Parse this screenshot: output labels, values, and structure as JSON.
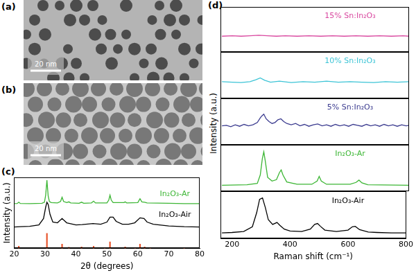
{
  "images": [
    {
      "label": "(a)",
      "scale_bar": "20 nm"
    },
    {
      "label": "(b)",
      "scale_bar": "20 nm"
    }
  ],
  "chart_data": [
    {
      "type": "line",
      "label": "(c)",
      "xlabel": "2θ (degrees)",
      "ylabel": "Intensity (a.u.)",
      "xlim": [
        20,
        80
      ],
      "xticks": [
        20,
        30,
        40,
        50,
        60,
        70,
        80
      ],
      "ylim": [
        0,
        10
      ],
      "tick_labels": "x",
      "grid": false,
      "series": [
        {
          "color": "#3cb634",
          "x": [
            20,
            21,
            21.5,
            22,
            25,
            29,
            29.8,
            30.2,
            30.6,
            31.0,
            31.4,
            32,
            34,
            35,
            35.5,
            36,
            37,
            37.7,
            38.3,
            41,
            41.8,
            42.5,
            45,
            45.7,
            46.3,
            50,
            50.6,
            51.0,
            51.4,
            52,
            55.5,
            55.9,
            56.4,
            60,
            60.7,
            61.3,
            62.2,
            63,
            70,
            75,
            80
          ],
          "values": [
            6.3,
            6.32,
            6.5,
            6.32,
            6.3,
            6.35,
            6.5,
            7.5,
            9.6,
            7.4,
            6.6,
            6.45,
            6.4,
            6.6,
            7.2,
            6.6,
            6.45,
            6.55,
            6.4,
            6.35,
            6.5,
            6.35,
            6.4,
            6.65,
            6.4,
            6.4,
            6.8,
            7.5,
            6.8,
            6.45,
            6.45,
            6.55,
            6.4,
            6.45,
            7.0,
            6.55,
            6.5,
            6.4,
            6.35,
            6.3,
            6.3
          ]
        },
        {
          "color": "#000000",
          "x": [
            20,
            22,
            25,
            28,
            29.5,
            30.2,
            30.6,
            31.0,
            31.6,
            32.5,
            34,
            35.5,
            37,
            38,
            40,
            42,
            45.5,
            48,
            50,
            51,
            52,
            53,
            55,
            57,
            59,
            60.7,
            62,
            63,
            65,
            70,
            75,
            80
          ],
          "values": [
            3.0,
            3.05,
            3.1,
            3.3,
            4.2,
            5.8,
            6.5,
            6.2,
            4.8,
            3.7,
            3.6,
            4.2,
            3.6,
            3.5,
            3.3,
            3.35,
            3.5,
            3.4,
            3.7,
            4.4,
            4.4,
            3.8,
            3.4,
            3.4,
            3.6,
            4.3,
            4.2,
            3.7,
            3.4,
            3.15,
            3.05,
            3.0
          ]
        },
        {
          "type": "bar",
          "color": "#e8532b",
          "x": [
            21.5,
            30.6,
            35.5,
            37.7,
            41.8,
            45.7,
            49.3,
            51.0,
            55.9,
            59.1,
            60.7,
            62.2,
            64.0,
            75.0
          ],
          "values": [
            0.3,
            2.1,
            0.6,
            0.15,
            0.2,
            0.3,
            0.1,
            0.9,
            0.2,
            0.1,
            0.6,
            0.2,
            0.1,
            0.1
          ]
        }
      ],
      "annotations": [
        {
          "text": "In₂O₃-Ar",
          "x": 72,
          "y": 7.6,
          "color": "#3cb634"
        },
        {
          "text": "In₂O₃-Air",
          "x": 72,
          "y": 4.7,
          "color": "#000000"
        }
      ]
    },
    {
      "type": "line",
      "label": "(d)",
      "xlabel": "Raman shift (cm⁻¹)",
      "ylabel": "Intensity (a.u.)",
      "xlim": [
        160,
        800
      ],
      "xticks": [
        200,
        400,
        600,
        800
      ],
      "grid": false,
      "panels": [
        {
          "ylim": [
            0,
            10
          ],
          "tick_labels": false,
          "annotations": [
            {
              "text": "15% Sn:In₂O₃",
              "x": 600,
              "y": 8
            }
          ],
          "series": [
            {
              "color": "#d9479f",
              "x": [
                165,
                200,
                230,
                260,
                290,
                320,
                350,
                380,
                420,
                460,
                500,
                540,
                580,
                620,
                660,
                700,
                740,
                780,
                800
              ],
              "values": [
                3.5,
                3.6,
                3.5,
                3.6,
                3.7,
                3.6,
                3.5,
                3.6,
                3.5,
                3.6,
                3.5,
                3.6,
                3.5,
                3.6,
                3.5,
                3.6,
                3.5,
                3.6,
                3.5
              ]
            }
          ]
        },
        {
          "ylim": [
            0,
            10
          ],
          "tick_labels": false,
          "annotations": [
            {
              "text": "10% Sn:In₂O₃",
              "x": 600,
              "y": 8
            }
          ],
          "series": [
            {
              "color": "#3cc4d6",
              "x": [
                165,
                200,
                230,
                260,
                280,
                295,
                310,
                330,
                360,
                400,
                440,
                480,
                520,
                560,
                600,
                640,
                680,
                720,
                760,
                800
              ],
              "values": [
                3.6,
                3.5,
                3.4,
                3.6,
                4.0,
                4.4,
                3.9,
                3.5,
                3.7,
                3.4,
                3.6,
                3.5,
                3.7,
                3.5,
                3.6,
                3.5,
                3.4,
                3.6,
                3.5,
                3.6
              ]
            }
          ]
        },
        {
          "ylim": [
            0,
            10
          ],
          "tick_labels": false,
          "annotations": [
            {
              "text": "5% Sn:In₂O₃",
              "x": 600,
              "y": 8
            }
          ],
          "series": [
            {
              "color": "#3b3b8f",
              "x": [
                165,
                180,
                195,
                210,
                225,
                240,
                255,
                270,
                285,
                295,
                300,
                307,
                315,
                325,
                335,
                345,
                355,
                365,
                375,
                385,
                400,
                415,
                430,
                445,
                460,
                475,
                490,
                505,
                520,
                535,
                550,
                565,
                580,
                595,
                610,
                625,
                640,
                655,
                670,
                685,
                700,
                715,
                730,
                745,
                760,
                775,
                790,
                800
              ],
              "values": [
                4.1,
                4.2,
                3.9,
                4.3,
                4.0,
                4.4,
                4.1,
                4.3,
                4.8,
                5.8,
                6.2,
                6.6,
                5.6,
                5.0,
                4.6,
                4.8,
                5.4,
                5.6,
                5.0,
                4.6,
                4.3,
                4.6,
                4.1,
                4.4,
                4.0,
                4.3,
                4.5,
                4.1,
                4.3,
                4.0,
                4.4,
                4.1,
                4.3,
                4.0,
                4.4,
                4.2,
                4.0,
                4.4,
                4.1,
                4.3,
                4.0,
                4.4,
                4.1,
                4.3,
                4.0,
                4.3,
                4.1,
                4.2
              ]
            }
          ]
        },
        {
          "ylim": [
            0,
            10
          ],
          "tick_labels": false,
          "annotations": [
            {
              "text": "In₂O₃-Ar",
              "x": 600,
              "y": 8
            }
          ],
          "series": [
            {
              "color": "#3cb634",
              "x": [
                165,
                250,
                285,
                295,
                302,
                307,
                312,
                320,
                335,
                350,
                360,
                366,
                372,
                385,
                420,
                470,
                488,
                495,
                502,
                520,
                600,
                620,
                630,
                640,
                660,
                800
              ],
              "values": [
                1.3,
                1.4,
                1.7,
                3.5,
                7.0,
                8.5,
                6.5,
                3.0,
                2.2,
                2.5,
                4.0,
                4.6,
                3.5,
                2.0,
                1.5,
                1.5,
                2.2,
                3.2,
                2.2,
                1.5,
                1.5,
                1.9,
                2.4,
                1.8,
                1.4,
                1.3
              ]
            }
          ]
        },
        {
          "ylim": [
            0,
            10
          ],
          "tick_labels": "x",
          "annotations": [
            {
              "text": "In₂O₃-Air",
              "x": 600,
              "y": 8
            }
          ],
          "series": [
            {
              "color": "#000000",
              "x": [
                165,
                200,
                240,
                270,
                285,
                295,
                305,
                315,
                325,
                340,
                355,
                365,
                380,
                400,
                440,
                470,
                485,
                495,
                505,
                520,
                560,
                600,
                615,
                625,
                640,
                670,
                700,
                750,
                800
              ],
              "values": [
                1.2,
                1.3,
                1.5,
                2.5,
                5.5,
                8.3,
                8.6,
                6.5,
                4.0,
                3.0,
                3.4,
                2.8,
                2.0,
                1.6,
                1.5,
                2.0,
                3.0,
                3.2,
                2.6,
                1.8,
                1.5,
                1.8,
                2.5,
                2.6,
                1.9,
                1.4,
                1.3,
                1.2,
                1.2
              ]
            }
          ]
        }
      ]
    }
  ]
}
